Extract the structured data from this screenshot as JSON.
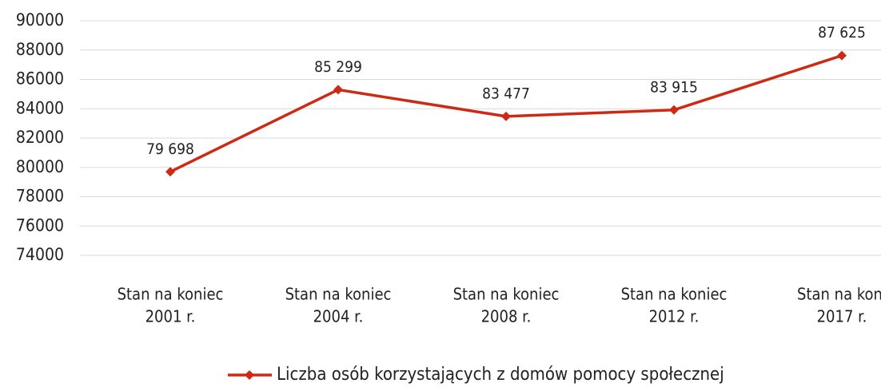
{
  "chart_data": {
    "type": "line",
    "categories": [
      [
        "Stan na koniec",
        "2001 r."
      ],
      [
        "Stan na koniec",
        "2004 r."
      ],
      [
        "Stan na koniec",
        "2008 r."
      ],
      [
        "Stan na koniec",
        "2012 r."
      ],
      [
        "Stan na koni",
        "2017 r."
      ]
    ],
    "series": [
      {
        "name": "Liczba osób korzystających z domów pomocy społecznej",
        "color": "#cc2a14",
        "values": [
          79698,
          85299,
          83477,
          83915,
          87625
        ],
        "value_labels": [
          "79 698",
          "85 299",
          "83 477",
          "83 915",
          "87 625"
        ]
      }
    ],
    "ylim": [
      74000,
      90000
    ],
    "yticks": [
      74000,
      76000,
      78000,
      80000,
      82000,
      84000,
      86000,
      88000,
      90000
    ],
    "grid": true,
    "legend": "bottom"
  }
}
